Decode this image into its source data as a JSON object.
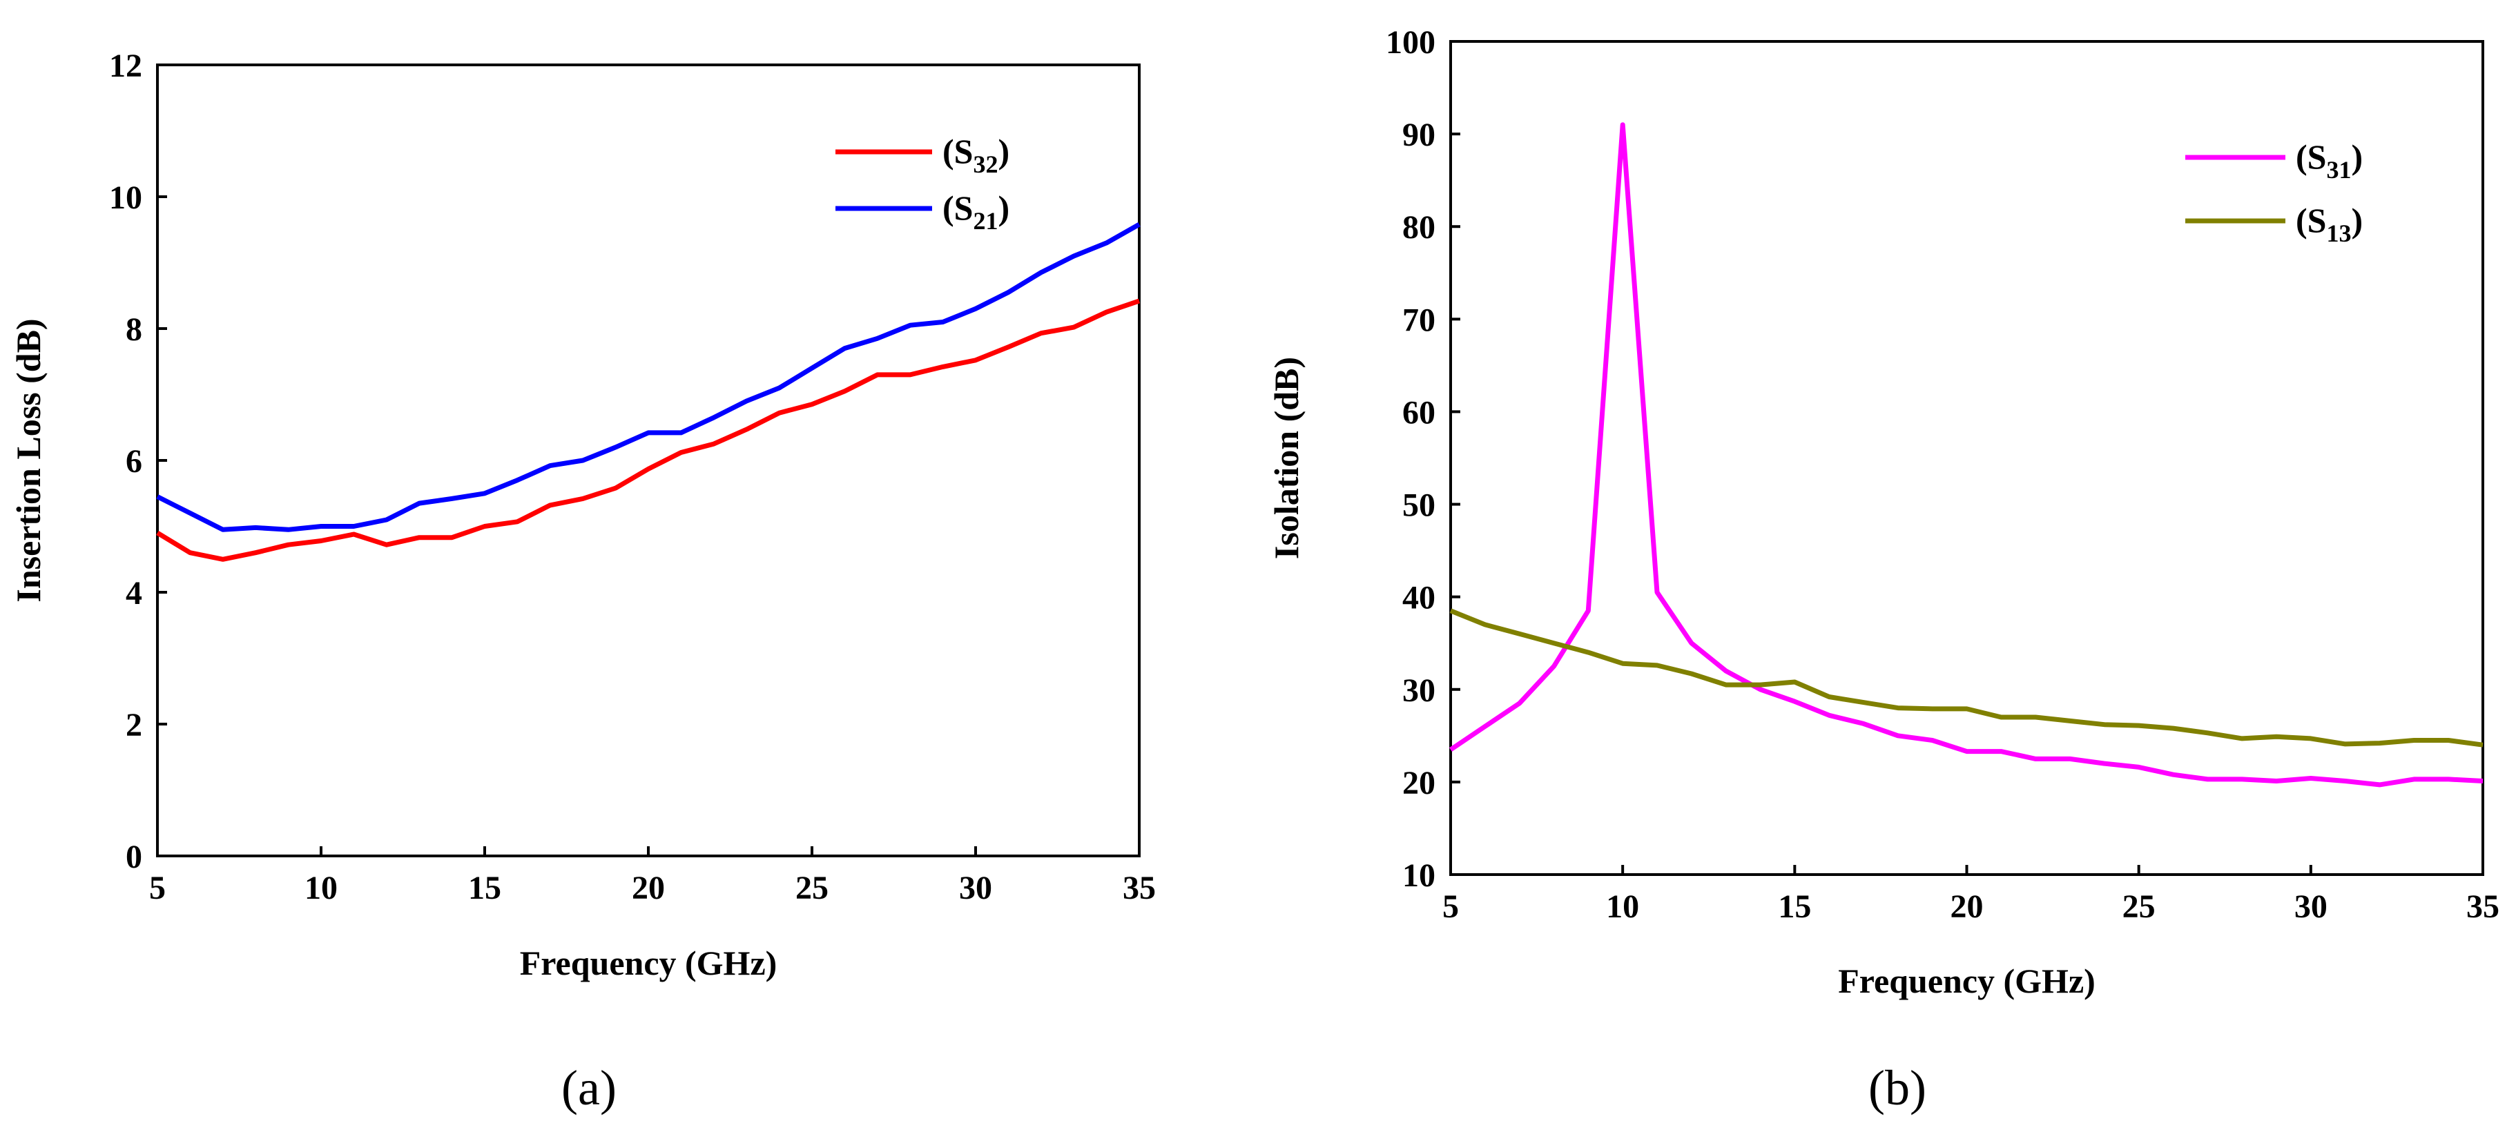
{
  "chart_data": [
    {
      "type": "line",
      "caption": "(a)",
      "xlabel": "Frequency (GHz)",
      "ylabel": "Insertion Loss (dB)",
      "xlim": [
        5,
        35
      ],
      "ylim": [
        0,
        12
      ],
      "xticks": [
        5,
        10,
        15,
        20,
        25,
        30,
        35
      ],
      "yticks": [
        0,
        2,
        4,
        6,
        8,
        10,
        12
      ],
      "grid": false,
      "legend_position": "top-right",
      "x": [
        5,
        6,
        7,
        8,
        9,
        10,
        11,
        12,
        13,
        14,
        15,
        16,
        17,
        18,
        19,
        20,
        21,
        22,
        23,
        24,
        25,
        26,
        27,
        28,
        29,
        30,
        31,
        32,
        33,
        34,
        35
      ],
      "series": [
        {
          "name": "(S32)",
          "label_base": "(S",
          "label_sub": "32",
          "label_end": ")",
          "color": "#ff0000",
          "values": [
            4.9,
            4.6,
            4.5,
            4.6,
            4.72,
            4.78,
            4.88,
            4.72,
            4.83,
            4.83,
            5.0,
            5.07,
            5.32,
            5.42,
            5.58,
            5.87,
            6.12,
            6.25,
            6.47,
            6.72,
            6.85,
            7.05,
            7.3,
            7.3,
            7.42,
            7.52,
            7.72,
            7.93,
            8.02,
            8.25,
            8.42
          ]
        },
        {
          "name": "(S21)",
          "label_base": "(S",
          "label_sub": "21",
          "label_end": ")",
          "color": "#0000ff",
          "values": [
            5.45,
            5.2,
            4.95,
            4.98,
            4.95,
            5.0,
            5.0,
            5.1,
            5.35,
            5.42,
            5.5,
            5.7,
            5.92,
            6.0,
            6.2,
            6.42,
            6.42,
            6.65,
            6.9,
            7.1,
            7.4,
            7.7,
            7.85,
            8.05,
            8.1,
            8.3,
            8.55,
            8.85,
            9.1,
            9.3,
            9.58
          ]
        }
      ]
    },
    {
      "type": "line",
      "caption": "(b)",
      "xlabel": "Frequency (GHz)",
      "ylabel": "Isolation (dB)",
      "xlim": [
        5,
        35
      ],
      "ylim": [
        10,
        100
      ],
      "xticks": [
        5,
        10,
        15,
        20,
        25,
        30,
        35
      ],
      "yticks": [
        10,
        20,
        30,
        40,
        50,
        60,
        70,
        80,
        90,
        100
      ],
      "grid": false,
      "legend_position": "top-right",
      "x": [
        5,
        6,
        7,
        8,
        9,
        10,
        11,
        12,
        13,
        14,
        15,
        16,
        17,
        18,
        19,
        20,
        21,
        22,
        23,
        24,
        25,
        26,
        27,
        28,
        29,
        30,
        31,
        32,
        33,
        34,
        35
      ],
      "series": [
        {
          "name": "(S31)",
          "label_base": "(S",
          "label_sub": "31",
          "label_end": ")",
          "color": "#ff00ff",
          "values": [
            23.5,
            26,
            28.5,
            32.5,
            38.5,
            91,
            40.5,
            35,
            32,
            30,
            28.7,
            27.2,
            26.3,
            25,
            24.5,
            23.3,
            23.3,
            22.5,
            22.5,
            22,
            21.6,
            20.8,
            20.3,
            20.3,
            20.1,
            20.4,
            20.1,
            19.7,
            20.3,
            20.3,
            20.1
          ]
        },
        {
          "name": "(S13)",
          "label_base": "(S",
          "label_sub": "13",
          "label_end": ")",
          "color": "#808000",
          "values": [
            38.5,
            37,
            36,
            35,
            34,
            32.8,
            32.6,
            31.7,
            30.5,
            30.5,
            30.8,
            29.2,
            28.6,
            28,
            27.9,
            27.9,
            27,
            27,
            26.6,
            26.2,
            26.1,
            25.8,
            25.3,
            24.7,
            24.9,
            24.7,
            24.1,
            24.2,
            24.5,
            24.5,
            24
          ]
        }
      ]
    }
  ]
}
